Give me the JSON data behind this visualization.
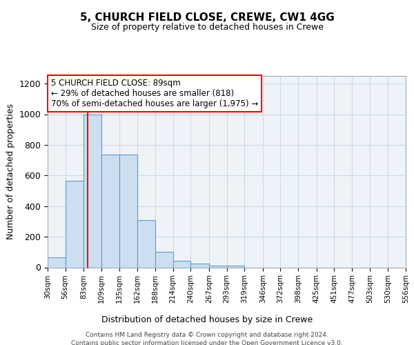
{
  "title1": "5, CHURCH FIELD CLOSE, CREWE, CW1 4GG",
  "title2": "Size of property relative to detached houses in Crewe",
  "xlabel": "Distribution of detached houses by size in Crewe",
  "ylabel": "Number of detached properties",
  "bin_edges": [
    30,
    56,
    83,
    109,
    135,
    162,
    188,
    214,
    240,
    267,
    293,
    319,
    346,
    372,
    398,
    425,
    451,
    477,
    503,
    530,
    556
  ],
  "bar_heights": [
    65,
    565,
    1000,
    735,
    735,
    310,
    100,
    42,
    25,
    12,
    12,
    0,
    0,
    0,
    0,
    0,
    0,
    0,
    0,
    0
  ],
  "bar_color": "#ccdff0",
  "bar_edge_color": "#5b9bd5",
  "red_line_x": 89,
  "annotation_lines": [
    "5 CHURCH FIELD CLOSE: 89sqm",
    "← 29% of detached houses are smaller (818)",
    "70% of semi-detached houses are larger (1,975) →"
  ],
  "ylim": [
    0,
    1250
  ],
  "yticks": [
    0,
    200,
    400,
    600,
    800,
    1000,
    1200
  ],
  "footer1": "Contains HM Land Registry data © Crown copyright and database right 2024.",
  "footer2": "Contains public sector information licensed under the Open Government Licence v3.0."
}
